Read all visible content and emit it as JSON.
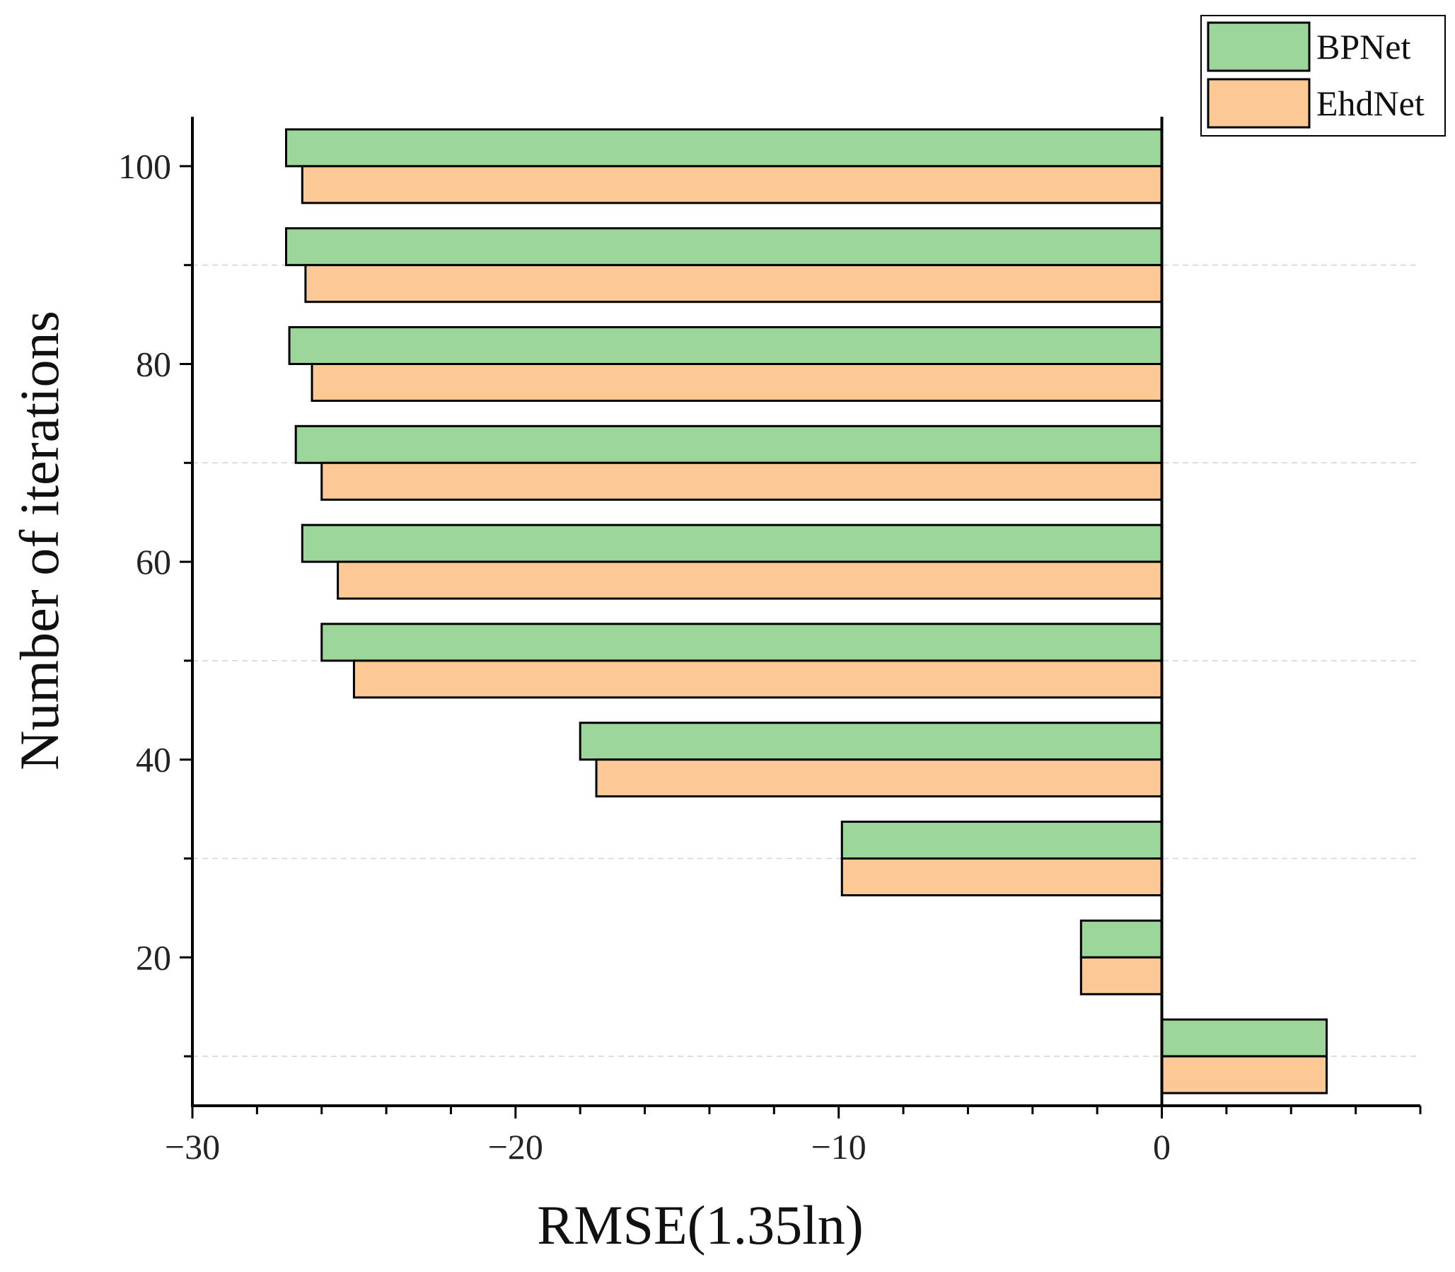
{
  "chart_data": {
    "type": "bar",
    "orientation": "horizontal",
    "categories": [
      10,
      20,
      30,
      40,
      50,
      60,
      70,
      80,
      90,
      100
    ],
    "series": [
      {
        "name": "BPNet",
        "color": "#9DD69A",
        "values": [
          5.1,
          -2.5,
          -9.9,
          -18.0,
          -26.0,
          -26.6,
          -26.8,
          -27.0,
          -27.1,
          -27.1
        ]
      },
      {
        "name": "EhdNet",
        "color": "#FBC896",
        "values": [
          5.1,
          -2.5,
          -9.9,
          -17.5,
          -25.0,
          -25.5,
          -26.0,
          -26.3,
          -26.5,
          -26.6
        ]
      }
    ],
    "xlim": [
      -30,
      8
    ],
    "ylim": [
      5,
      105
    ],
    "xticks": [
      -30,
      -20,
      -10,
      0
    ],
    "xtick_labels": [
      "−30",
      "−20",
      "−10",
      "0"
    ],
    "yticks": [
      20,
      40,
      60,
      80,
      100
    ],
    "ytick_labels": [
      "20",
      "40",
      "60",
      "80",
      "100"
    ],
    "xlabel": "RMSE(1.35ln)",
    "ylabel": "Number of iterations",
    "grid": "dashed horizontal at odd tens",
    "legend_position": "top-right"
  }
}
